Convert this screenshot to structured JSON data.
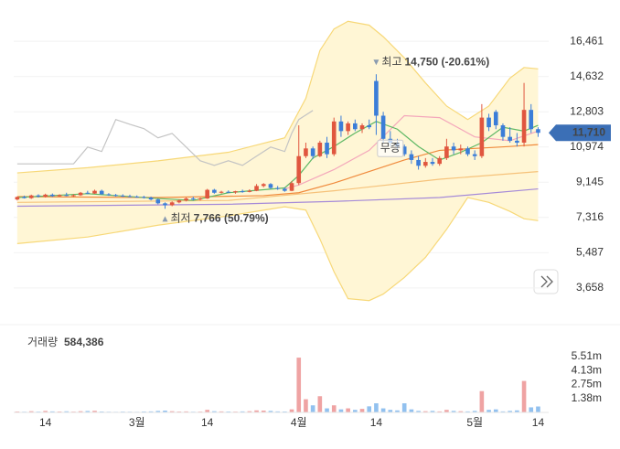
{
  "chart_data": {
    "type": "candlestick",
    "up_color": "#e0563f",
    "down_color": "#3b7dd8",
    "xlim": [
      -0.5,
      75.5
    ],
    "xticks": [
      {
        "value": 4,
        "label": "14"
      },
      {
        "value": 17,
        "label": "3월"
      },
      {
        "value": 27,
        "label": "14"
      },
      {
        "value": 40,
        "label": "4월"
      },
      {
        "value": 51,
        "label": "14"
      },
      {
        "value": 65,
        "label": "5월"
      },
      {
        "value": 74,
        "label": "14"
      }
    ],
    "ylim": [
      2465,
      17893
    ],
    "yticks": [
      {
        "value": 16461,
        "label": "16,461"
      },
      {
        "value": 14632,
        "label": "14,632"
      },
      {
        "value": 12803,
        "label": "12,803"
      },
      {
        "value": 10974,
        "label": "10,974"
      },
      {
        "value": 9145,
        "label": "9,145"
      },
      {
        "value": 7316,
        "label": "7,316"
      },
      {
        "value": 5487,
        "label": "5,487"
      },
      {
        "value": 3658,
        "label": "3,658"
      }
    ],
    "grid": true,
    "open": [
      8250,
      8380,
      8320,
      8460,
      8400,
      8500,
      8420,
      8480,
      8450,
      8470,
      8600,
      8560,
      8700,
      8520,
      8480,
      8450,
      8420,
      8400,
      8380,
      8350,
      8250,
      8050,
      7950,
      8100,
      8200,
      8300,
      8250,
      8300,
      8750,
      8600,
      8650,
      8620,
      8680,
      8640,
      8700,
      8950,
      9050,
      8850,
      8800,
      8700,
      9100,
      10500,
      10900,
      10500,
      11200,
      10600,
      12300,
      11800,
      12200,
      11900,
      12100,
      14400,
      12600,
      11400,
      11200,
      11000,
      10600,
      10300,
      10000,
      10200,
      10100,
      10400,
      11000,
      10800,
      10900,
      10600,
      10500,
      12500,
      12800,
      12100,
      11500,
      11300,
      11200,
      12900,
      11900
    ],
    "high": [
      8400,
      8450,
      8500,
      8520,
      8550,
      8560,
      8520,
      8600,
      8520,
      8640,
      8700,
      8760,
      8760,
      8580,
      8540,
      8520,
      8500,
      8460,
      8440,
      8400,
      8300,
      8100,
      8150,
      8250,
      8350,
      8400,
      8350,
      8800,
      8800,
      8700,
      8720,
      8700,
      8760,
      8780,
      9050,
      9100,
      9100,
      8950,
      8880,
      9200,
      12100,
      11200,
      11000,
      11300,
      11500,
      12500,
      12600,
      12300,
      12400,
      12200,
      12400,
      14750,
      12800,
      11800,
      11400,
      11100,
      10800,
      10500,
      10400,
      10400,
      10500,
      11400,
      11200,
      11100,
      11000,
      10800,
      13200,
      12700,
      12900,
      12200,
      12000,
      11700,
      14300,
      13200,
      12000
    ],
    "low": [
      8200,
      8300,
      8280,
      8350,
      8350,
      8380,
      8400,
      8420,
      8380,
      8440,
      8520,
      8540,
      8500,
      8440,
      8400,
      8380,
      8360,
      8340,
      8300,
      8200,
      8000,
      7766,
      7900,
      8050,
      8150,
      8200,
      8200,
      8280,
      8550,
      8560,
      8580,
      8550,
      8600,
      8620,
      8680,
      8880,
      8800,
      8750,
      8650,
      8680,
      9000,
      10400,
      10350,
      10450,
      10400,
      10500,
      11500,
      11600,
      11800,
      11700,
      11900,
      11600,
      11200,
      11000,
      10800,
      10500,
      10100,
      9800,
      9900,
      10000,
      10000,
      10300,
      10600,
      10600,
      10500,
      10300,
      10400,
      11800,
      11900,
      11300,
      11200,
      11000,
      11000,
      11700,
      11500
    ],
    "close": [
      8380,
      8320,
      8460,
      8400,
      8500,
      8420,
      8480,
      8450,
      8470,
      8600,
      8560,
      8700,
      8520,
      8480,
      8450,
      8420,
      8400,
      8380,
      8350,
      8250,
      8050,
      7950,
      8100,
      8200,
      8300,
      8250,
      8300,
      8750,
      8600,
      8650,
      8620,
      8680,
      8640,
      8700,
      8950,
      9050,
      8850,
      8800,
      8700,
      9100,
      10500,
      10900,
      10500,
      11200,
      10600,
      12300,
      11800,
      12200,
      11900,
      12100,
      12000,
      12600,
      11400,
      11200,
      11000,
      10600,
      10300,
      10000,
      10200,
      10100,
      10400,
      11000,
      10800,
      10900,
      10600,
      10500,
      12500,
      12000,
      12100,
      11500,
      11300,
      11200,
      12900,
      11900,
      11710
    ],
    "bands": {
      "fill": "#fff6d5",
      "color": "#f7d878",
      "x": [
        0,
        10,
        20,
        30,
        38,
        41,
        43,
        45,
        47,
        50,
        52,
        55,
        58,
        61,
        64,
        67,
        70,
        72,
        74
      ],
      "upper": [
        9630,
        9900,
        10255,
        10700,
        11450,
        13500,
        15984,
        17100,
        17500,
        17300,
        16700,
        15600,
        14300,
        13100,
        12400,
        13100,
        14550,
        15100,
        15030
      ],
      "lower": [
        5960,
        6300,
        6915,
        7400,
        7870,
        7700,
        6200,
        4500,
        3100,
        3000,
        3340,
        4200,
        5245,
        6700,
        8350,
        8100,
        7630,
        7250,
        7150
      ]
    },
    "lines": [
      {
        "color": "#c4c4c4",
        "x": [
          0,
          8,
          10,
          12,
          14,
          16,
          18,
          20,
          22,
          24,
          26,
          28,
          30,
          32,
          34,
          36,
          38,
          39,
          40,
          42
        ],
        "values": [
          10100,
          10100,
          10970,
          10740,
          12400,
          12150,
          11930,
          11450,
          11680,
          10970,
          10260,
          10020,
          10260,
          10020,
          10500,
          10970,
          10740,
          11690,
          12400,
          12870
        ]
      },
      {
        "color": "#a58ad8",
        "x": [
          0,
          30,
          45,
          60,
          74
        ],
        "values": [
          7900,
          8000,
          8150,
          8350,
          8800
        ]
      },
      {
        "color": "#f6c27a",
        "x": [
          0,
          30,
          45,
          60,
          74
        ],
        "values": [
          8100,
          8200,
          8700,
          9300,
          9700
        ]
      },
      {
        "color": "#f08a3c",
        "x": [
          0,
          20,
          35,
          40,
          45,
          50,
          55,
          60,
          65,
          70,
          74
        ],
        "values": [
          8400,
          8350,
          8450,
          8600,
          9100,
          9700,
          10300,
          10800,
          10900,
          11000,
          11100
        ]
      },
      {
        "color": "#f4a7bb",
        "x": [
          38,
          40,
          45,
          50,
          55,
          60,
          65,
          70,
          74
        ],
        "values": [
          8800,
          9000,
          9800,
          10800,
          12600,
          12500,
          11500,
          11300,
          11800
        ]
      },
      {
        "color": "#5fb865",
        "x": [
          0,
          10,
          20,
          25,
          30,
          38,
          40,
          42,
          45,
          48,
          51,
          54,
          57,
          60,
          63,
          66,
          69,
          72,
          74
        ],
        "values": [
          8350,
          8550,
          8300,
          8200,
          8600,
          8850,
          9500,
          10400,
          11000,
          11700,
          12300,
          11900,
          11000,
          10300,
          10700,
          11200,
          12000,
          11800,
          12100
        ]
      }
    ],
    "annotations": [
      {
        "label": "최고",
        "text": "14,750 (-20.61%)",
        "x": 51,
        "y": 14750,
        "side": "above"
      },
      {
        "label": "최저",
        "text": "7,766 (50.79%)",
        "x": 21,
        "y": 7766,
        "side": "below"
      }
    ],
    "event": {
      "text": "무증",
      "x": 53,
      "y": 10900
    },
    "current_price": {
      "value": 11710,
      "label": "11,710"
    },
    "volume": {
      "title": "거래량",
      "current": {
        "value": 584386,
        "label": "584,386"
      },
      "ylim": [
        0,
        6400000
      ],
      "yticks": [
        {
          "value": 5510000,
          "label": "5.51m"
        },
        {
          "value": 4130000,
          "label": "4.13m"
        },
        {
          "value": 2750000,
          "label": "2.75m"
        },
        {
          "value": 1380000,
          "label": "1.38m"
        }
      ],
      "values": [
        90000,
        70000,
        120000,
        80000,
        150000,
        100000,
        90000,
        110000,
        80000,
        120000,
        140000,
        160000,
        90000,
        70000,
        60000,
        80000,
        70000,
        60000,
        90000,
        100000,
        150000,
        180000,
        120000,
        90000,
        100000,
        70000,
        80000,
        250000,
        120000,
        100000,
        90000,
        80000,
        100000,
        120000,
        200000,
        180000,
        150000,
        100000,
        90000,
        300000,
        5400000,
        1300000,
        700000,
        1600000,
        400000,
        700000,
        300000,
        400000,
        250000,
        350000,
        600000,
        900000,
        400000,
        250000,
        200000,
        900000,
        300000,
        150000,
        120000,
        150000,
        100000,
        250000,
        150000,
        120000,
        100000,
        150000,
        2100000,
        250000,
        300000,
        100000,
        150000,
        200000,
        3100000,
        500000,
        584386
      ]
    }
  }
}
